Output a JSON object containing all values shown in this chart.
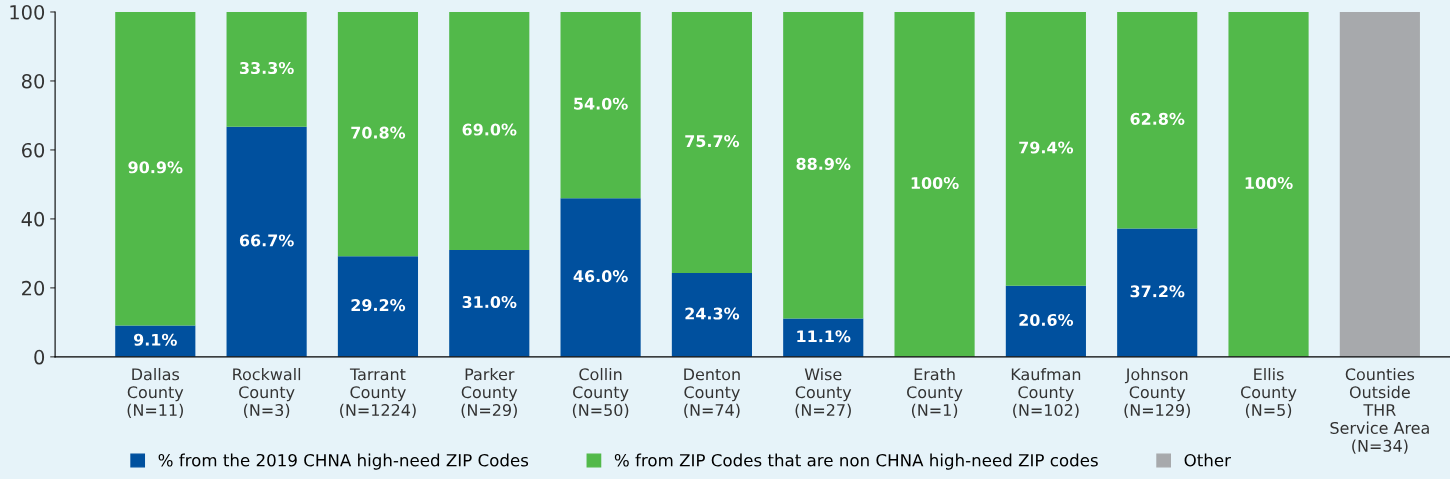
{
  "chart_data": {
    "type": "bar",
    "stacked": true,
    "categories": [
      "Dallas\nCounty\n(N=11)",
      "Rockwall\nCounty\n(N=3)",
      "Tarrant\nCounty\n(N=1224)",
      "Parker\nCounty\n(N=29)",
      "Collin\nCounty\n(N=50)",
      "Denton\nCounty\n(N=74)",
      "Wise\nCounty\n(N=27)",
      "Erath\nCounty\n(N=1)",
      "Kaufman\nCounty\n(N=102)",
      "Johnson\nCounty\n(N=129)",
      "Ellis\nCounty\n(N=5)",
      "Counties\nOutside\nTHR\nService Area\n(N=34)"
    ],
    "series": [
      {
        "name": "% from the 2019 CHNA high-need ZIP Codes",
        "color": "#00509e",
        "values": [
          9.1,
          66.7,
          29.2,
          31.0,
          46.0,
          24.3,
          11.1,
          null,
          20.6,
          37.2,
          null,
          null
        ],
        "value_labels": [
          "9.1%",
          "66.7%",
          "29.2%",
          "31.0%",
          "46.0%",
          "24.3%",
          "11.1%",
          null,
          "20.6%",
          "37.2%",
          null,
          null
        ]
      },
      {
        "name": "% from ZIP Codes that are non CHNA high-need ZIP codes",
        "color": "#52b94a",
        "values": [
          90.9,
          33.3,
          70.8,
          69.0,
          54.0,
          75.7,
          88.9,
          100,
          79.4,
          62.8,
          100,
          null
        ],
        "value_labels": [
          "90.9%",
          "33.3%",
          "70.8%",
          "69.0%",
          "54.0%",
          "75.7%",
          "88.9%",
          "100%",
          "79.4%",
          "62.8%",
          "100%",
          null
        ]
      },
      {
        "name": "Other",
        "color": "#a7a9ac",
        "values": [
          null,
          null,
          null,
          null,
          null,
          null,
          null,
          null,
          null,
          null,
          null,
          100
        ]
      }
    ],
    "ylim": [
      0,
      100
    ],
    "yticks": [
      0,
      20,
      40,
      60,
      80,
      100
    ],
    "grid": false,
    "legend": "bottom"
  }
}
